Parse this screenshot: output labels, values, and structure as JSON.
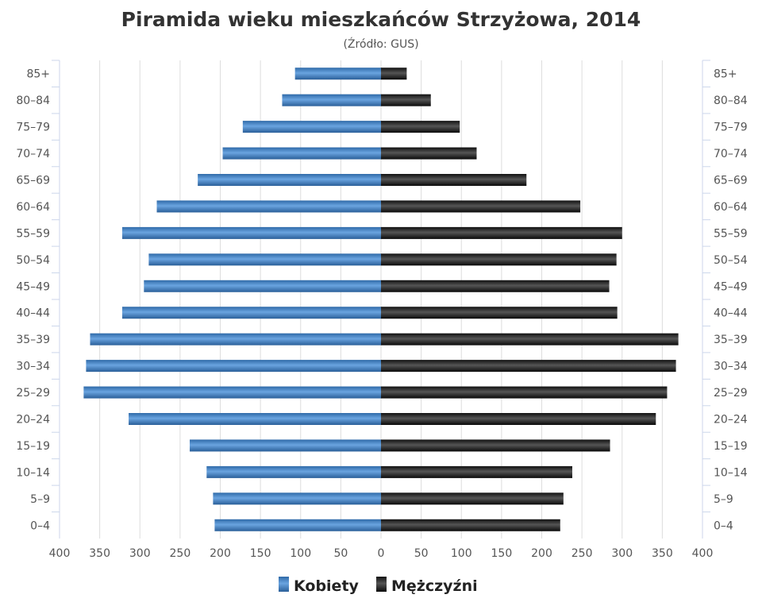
{
  "chart_data": {
    "type": "bar",
    "orientation": "horizontal-pyramid",
    "title": "Piramida wieku mieszkańców Strzyżowa, 2014",
    "subtitle": "(Źródło: GUS)",
    "categories": [
      "85+",
      "80-84",
      "75-79",
      "70-74",
      "65-69",
      "60-64",
      "55-59",
      "50-54",
      "45-49",
      "40-44",
      "35-39",
      "30-34",
      "25-29",
      "20-24",
      "15-19",
      "10-14",
      "5-9",
      "0-4"
    ],
    "series": [
      {
        "name": "Kobiety",
        "side": "left",
        "color": "#3f7fc0",
        "values": [
          107,
          123,
          172,
          197,
          228,
          279,
          322,
          289,
          295,
          322,
          362,
          367,
          370,
          314,
          238,
          217,
          209,
          207
        ]
      },
      {
        "name": "Mężczyźni",
        "side": "right",
        "color": "#1a1a1a",
        "values": [
          32,
          62,
          98,
          119,
          181,
          248,
          300,
          293,
          284,
          294,
          370,
          367,
          356,
          342,
          285,
          238,
          227,
          223
        ]
      }
    ],
    "xticks": [
      400,
      350,
      300,
      250,
      200,
      150,
      100,
      50,
      0,
      50,
      100,
      150,
      200,
      250,
      300,
      350,
      400
    ],
    "xlim": [
      -400,
      400
    ],
    "grid": true,
    "legend_position": "bottom-center"
  }
}
